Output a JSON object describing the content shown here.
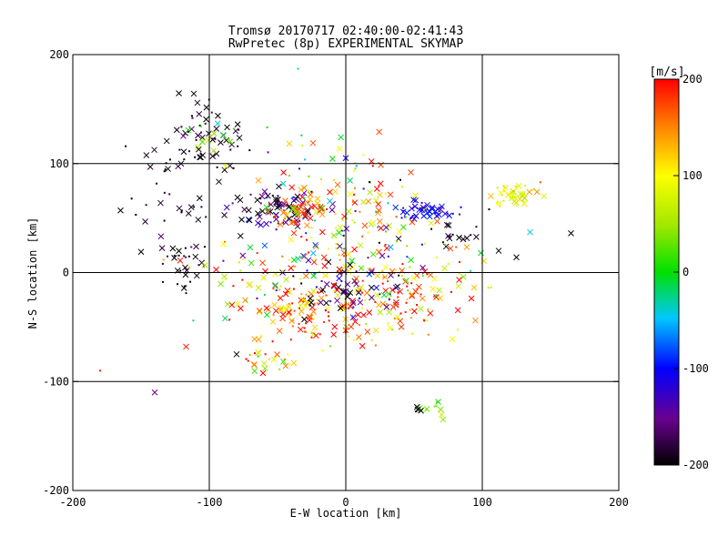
{
  "chart_data": {
    "type": "scatter",
    "title": "Tromsø 20170717 02:40:00-02:41:43",
    "subtitle": "RwPretec (8p) EXPERIMENTAL SKYMAP",
    "xlabel": "E-W location [km]",
    "ylabel": "N-S location [km]",
    "xlim": [
      -200,
      200
    ],
    "ylim": [
      -200,
      200
    ],
    "xticks": [
      "-200",
      "-100",
      "0",
      "100",
      "200"
    ],
    "yticks": [
      "-200",
      "-100",
      "0",
      "100",
      "200"
    ],
    "grid_x": [
      -100,
      0,
      100
    ],
    "grid_y": [
      -100,
      0,
      100
    ],
    "colorbar": {
      "label": "[m/s]",
      "range": [
        -200,
        200
      ],
      "ticks": [
        "200",
        "100",
        "0",
        "-100",
        "-200"
      ],
      "colormap": "black-purple-blue-cyan-green-yellow-orange-red"
    },
    "marker_legend": "x = large markers, . = small markers; color encodes velocity [m/s]",
    "clusters": [
      {
        "cx": -48,
        "cy": 58,
        "sx": 14,
        "sy": 9,
        "n": 70,
        "v": -180,
        "vs": 40
      },
      {
        "cx": -35,
        "cy": 58,
        "sx": 10,
        "sy": 6,
        "n": 45,
        "v": 180,
        "vs": 30
      },
      {
        "cx": -40,
        "cy": -38,
        "sx": 18,
        "sy": 12,
        "n": 80,
        "v": 160,
        "vs": 50
      },
      {
        "cx": 15,
        "cy": -30,
        "sx": 22,
        "sy": 18,
        "n": 80,
        "v": 150,
        "vs": 60
      },
      {
        "cx": 0,
        "cy": -10,
        "sx": 20,
        "sy": 15,
        "n": 60,
        "v": -170,
        "vs": 40
      },
      {
        "cx": 60,
        "cy": 57,
        "sx": 12,
        "sy": 4,
        "n": 45,
        "v": -110,
        "vs": 20
      },
      {
        "cx": 125,
        "cy": 72,
        "sx": 9,
        "sy": 6,
        "n": 45,
        "v": 90,
        "vs": 30
      },
      {
        "cx": -100,
        "cy": 128,
        "sx": 14,
        "sy": 14,
        "n": 45,
        "v": -190,
        "vs": 20
      },
      {
        "cx": -100,
        "cy": 125,
        "sx": 8,
        "sy": 6,
        "n": 14,
        "v": 40,
        "vs": 30
      },
      {
        "cx": -120,
        "cy": 85,
        "sx": 18,
        "sy": 25,
        "n": 45,
        "v": -195,
        "vs": 10
      },
      {
        "cx": -120,
        "cy": 5,
        "sx": 10,
        "sy": 15,
        "n": 30,
        "v": -190,
        "vs": 15
      },
      {
        "cx": 5,
        "cy": 45,
        "sx": 25,
        "sy": 35,
        "n": 90,
        "v": 150,
        "vs": 70
      },
      {
        "cx": 60,
        "cy": -20,
        "sx": 20,
        "sy": 20,
        "n": 55,
        "v": 150,
        "vs": 60
      },
      {
        "cx": 65,
        "cy": -125,
        "sx": 8,
        "sy": 4,
        "n": 10,
        "v": 50,
        "vs": 20
      },
      {
        "cx": 50,
        "cy": -125,
        "sx": 5,
        "sy": 2,
        "n": 4,
        "v": -200,
        "vs": 5
      },
      {
        "cx": -55,
        "cy": -80,
        "sx": 15,
        "sy": 8,
        "n": 25,
        "v": 100,
        "vs": 80
      },
      {
        "cx": 80,
        "cy": 35,
        "sx": 8,
        "sy": 6,
        "n": 14,
        "v": -190,
        "vs": 10
      },
      {
        "cx": -60,
        "cy": 10,
        "sx": 30,
        "sy": 25,
        "n": 70,
        "v": 60,
        "vs": 120
      },
      {
        "cx": 30,
        "cy": 20,
        "sx": 35,
        "sy": 25,
        "n": 60,
        "v": 60,
        "vs": 120
      },
      {
        "cx": -20,
        "cy": 80,
        "sx": 30,
        "sy": 25,
        "n": 40,
        "v": 0,
        "vs": 150
      }
    ],
    "isolated_points": [
      {
        "x": -165,
        "y": 57,
        "v": -200,
        "m": "x"
      },
      {
        "x": -150,
        "y": 19,
        "v": -200,
        "m": "x"
      },
      {
        "x": -140,
        "y": -110,
        "v": -150,
        "m": "x"
      },
      {
        "x": -180,
        "y": -90,
        "v": 190,
        "m": "."
      },
      {
        "x": -117,
        "y": -68,
        "v": 190,
        "m": "x"
      },
      {
        "x": 165,
        "y": 36,
        "v": -200,
        "m": "x"
      },
      {
        "x": 112,
        "y": 20,
        "v": -200,
        "m": "x"
      },
      {
        "x": 125,
        "y": 14,
        "v": -200,
        "m": "x"
      },
      {
        "x": 135,
        "y": 37,
        "v": -40,
        "m": "x"
      },
      {
        "x": 145,
        "y": 70,
        "v": 80,
        "m": "x"
      },
      {
        "x": 95,
        "y": -44,
        "v": 150,
        "m": "x"
      },
      {
        "x": 105,
        "y": 58,
        "v": -200,
        "m": "."
      },
      {
        "x": -35,
        "y": 187,
        "v": -40,
        "m": "."
      },
      {
        "x": 0,
        "y": 105,
        "v": -110,
        "m": "x"
      },
      {
        "x": -80,
        "y": -75,
        "v": -200,
        "m": "x"
      },
      {
        "x": 40,
        "y": 85,
        "v": -200,
        "m": "."
      }
    ]
  }
}
